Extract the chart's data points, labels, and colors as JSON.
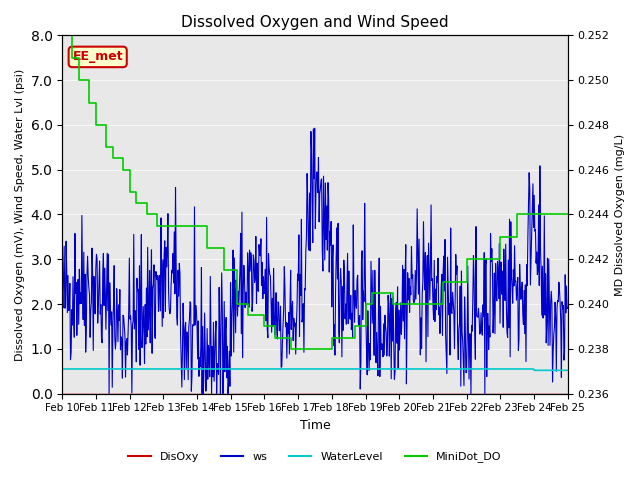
{
  "title": "Dissolved Oxygen and Wind Speed",
  "xlabel": "Time",
  "ylabel_left": "Dissolved Oxygen (mV), Wind Speed, Water Lvl (psi)",
  "ylabel_right": "MD Dissolved Oxygen (mg/L)",
  "ylim_left": [
    0.0,
    8.0
  ],
  "ylim_right": [
    0.236,
    0.252
  ],
  "yticks_left": [
    0.0,
    1.0,
    2.0,
    3.0,
    4.0,
    5.0,
    6.0,
    7.0,
    8.0
  ],
  "yticks_right": [
    0.236,
    0.238,
    0.24,
    0.242,
    0.244,
    0.246,
    0.248,
    0.25,
    0.252
  ],
  "xtick_labels": [
    "Feb 10",
    "Feb 11",
    "Feb 12",
    "Feb 13",
    "Feb 14",
    "Feb 15",
    "Feb 16",
    "Feb 17",
    "Feb 18",
    "Feb 19",
    "Feb 20",
    "Feb 21",
    "Feb 22",
    "Feb 23",
    "Feb 24",
    "Feb 25"
  ],
  "annotation_text": "EE_met",
  "annotation_color": "#cc0000",
  "background_color": "#e8e8e8",
  "colors": {
    "DisOxy": "#cc0000",
    "ws": "#0000cc",
    "WaterLevel": "#00cccc",
    "MiniDot_DO": "#00cc00"
  },
  "legend_labels": [
    "DisOxy",
    "ws",
    "WaterLevel",
    "MiniDot_DO"
  ]
}
